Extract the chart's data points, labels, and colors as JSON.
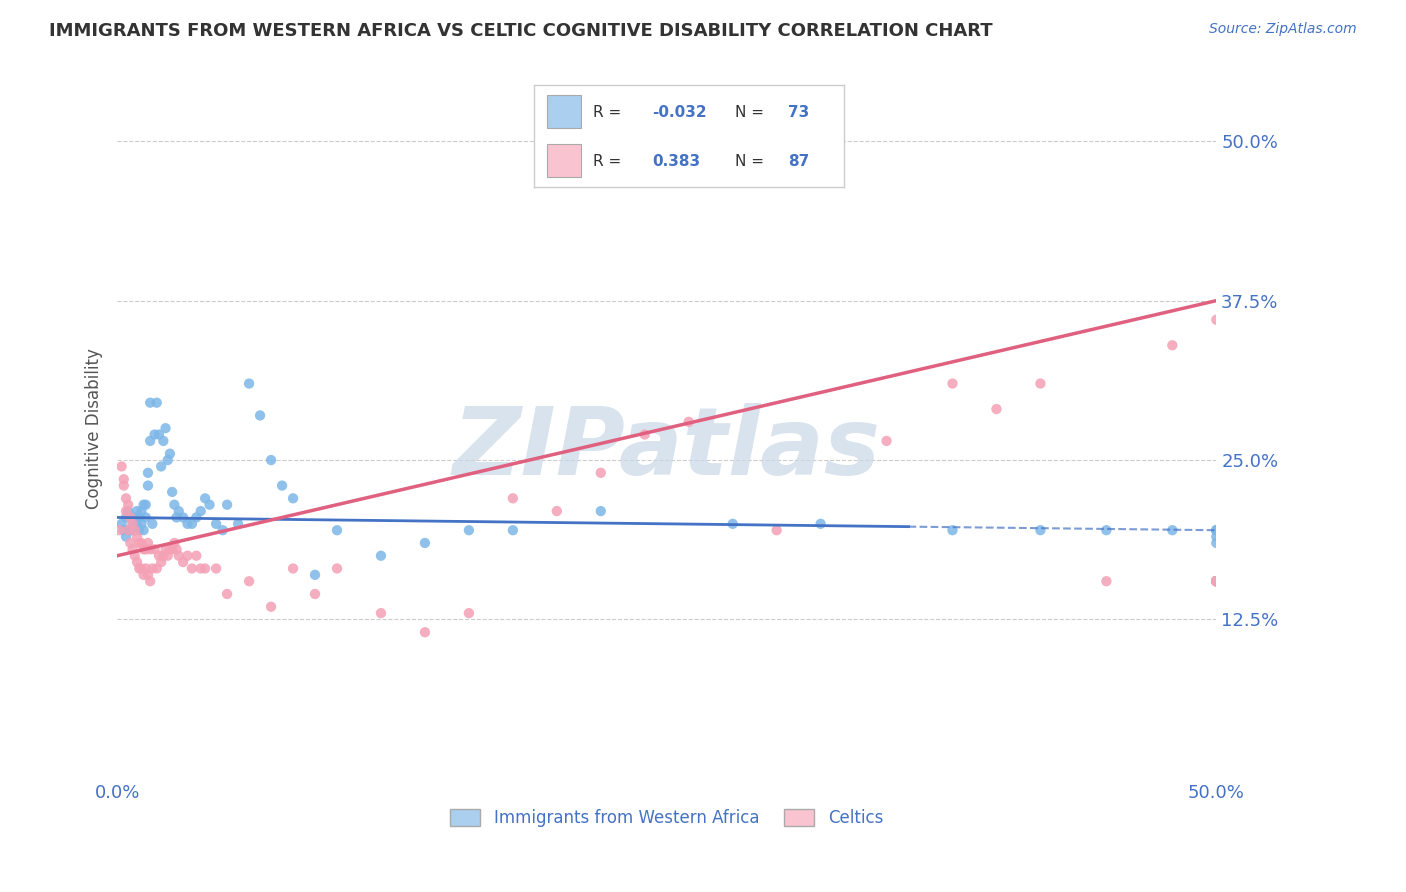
{
  "title": "IMMIGRANTS FROM WESTERN AFRICA VS CELTIC COGNITIVE DISABILITY CORRELATION CHART",
  "source": "Source: ZipAtlas.com",
  "ylabel_ticks": [
    0.0,
    0.125,
    0.25,
    0.375,
    0.5
  ],
  "ylabel_labels": [
    "",
    "12.5%",
    "25.0%",
    "37.5%",
    "50.0%"
  ],
  "xmin": 0.0,
  "xmax": 0.5,
  "ymin": 0.0,
  "ymax": 0.55,
  "blue_color": "#7db7e8",
  "pink_color": "#f4a0b5",
  "blue_legend_color": "#aacfef",
  "pink_legend_color": "#f9c4d0",
  "trend_blue_color": "#4472c4",
  "trend_pink_color": "#e06080",
  "axis_color": "#4472c4",
  "watermark_color": "#c8d8e8",
  "title_color": "#333333",
  "blue_scatter_x": [
    0.002,
    0.003,
    0.004,
    0.004,
    0.005,
    0.005,
    0.006,
    0.006,
    0.007,
    0.007,
    0.008,
    0.008,
    0.009,
    0.009,
    0.01,
    0.01,
    0.011,
    0.011,
    0.012,
    0.012,
    0.013,
    0.013,
    0.014,
    0.014,
    0.015,
    0.015,
    0.016,
    0.017,
    0.018,
    0.019,
    0.02,
    0.021,
    0.022,
    0.023,
    0.024,
    0.025,
    0.026,
    0.027,
    0.028,
    0.03,
    0.032,
    0.034,
    0.036,
    0.038,
    0.04,
    0.042,
    0.045,
    0.048,
    0.05,
    0.055,
    0.06,
    0.065,
    0.07,
    0.075,
    0.08,
    0.09,
    0.1,
    0.12,
    0.14,
    0.16,
    0.18,
    0.22,
    0.28,
    0.32,
    0.38,
    0.42,
    0.45,
    0.48,
    0.5,
    0.5,
    0.5,
    0.5,
    0.5
  ],
  "blue_scatter_y": [
    0.2,
    0.195,
    0.19,
    0.205,
    0.195,
    0.21,
    0.195,
    0.205,
    0.2,
    0.195,
    0.195,
    0.205,
    0.2,
    0.21,
    0.195,
    0.205,
    0.2,
    0.21,
    0.215,
    0.195,
    0.205,
    0.215,
    0.23,
    0.24,
    0.295,
    0.265,
    0.2,
    0.27,
    0.295,
    0.27,
    0.245,
    0.265,
    0.275,
    0.25,
    0.255,
    0.225,
    0.215,
    0.205,
    0.21,
    0.205,
    0.2,
    0.2,
    0.205,
    0.21,
    0.22,
    0.215,
    0.2,
    0.195,
    0.215,
    0.2,
    0.31,
    0.285,
    0.25,
    0.23,
    0.22,
    0.16,
    0.195,
    0.175,
    0.185,
    0.195,
    0.195,
    0.21,
    0.2,
    0.2,
    0.195,
    0.195,
    0.195,
    0.195,
    0.19,
    0.185,
    0.195,
    0.195,
    0.195
  ],
  "pink_scatter_x": [
    0.001,
    0.002,
    0.003,
    0.003,
    0.004,
    0.004,
    0.005,
    0.005,
    0.006,
    0.006,
    0.007,
    0.007,
    0.008,
    0.008,
    0.009,
    0.009,
    0.01,
    0.01,
    0.011,
    0.011,
    0.012,
    0.012,
    0.013,
    0.013,
    0.014,
    0.014,
    0.015,
    0.015,
    0.016,
    0.017,
    0.018,
    0.019,
    0.02,
    0.021,
    0.022,
    0.023,
    0.024,
    0.025,
    0.026,
    0.027,
    0.028,
    0.03,
    0.032,
    0.034,
    0.036,
    0.038,
    0.04,
    0.045,
    0.05,
    0.06,
    0.07,
    0.08,
    0.09,
    0.1,
    0.12,
    0.14,
    0.16,
    0.18,
    0.2,
    0.22,
    0.24,
    0.26,
    0.3,
    0.35,
    0.38,
    0.4,
    0.42,
    0.45,
    0.48,
    0.5,
    0.5,
    0.5,
    0.5,
    0.5,
    0.5,
    0.5,
    0.5,
    0.5,
    0.5,
    0.5,
    0.5,
    0.5,
    0.5,
    0.5,
    0.5,
    0.5,
    0.5
  ],
  "pink_scatter_y": [
    0.195,
    0.245,
    0.23,
    0.235,
    0.21,
    0.22,
    0.195,
    0.215,
    0.185,
    0.205,
    0.18,
    0.2,
    0.175,
    0.195,
    0.17,
    0.19,
    0.165,
    0.185,
    0.165,
    0.185,
    0.16,
    0.18,
    0.165,
    0.18,
    0.16,
    0.185,
    0.155,
    0.18,
    0.165,
    0.18,
    0.165,
    0.175,
    0.17,
    0.175,
    0.18,
    0.175,
    0.18,
    0.18,
    0.185,
    0.18,
    0.175,
    0.17,
    0.175,
    0.165,
    0.175,
    0.165,
    0.165,
    0.165,
    0.145,
    0.155,
    0.135,
    0.165,
    0.145,
    0.165,
    0.13,
    0.115,
    0.13,
    0.22,
    0.21,
    0.24,
    0.27,
    0.28,
    0.195,
    0.265,
    0.31,
    0.29,
    0.31,
    0.155,
    0.34,
    0.36,
    0.155,
    0.155,
    0.155,
    0.155,
    0.155,
    0.155,
    0.155,
    0.155,
    0.155,
    0.155,
    0.155,
    0.155,
    0.155,
    0.155,
    0.155,
    0.155,
    0.155
  ],
  "blue_trend_y_start": 0.205,
  "blue_trend_y_end": 0.195,
  "pink_trend_y_start": 0.175,
  "pink_trend_y_end": 0.375
}
